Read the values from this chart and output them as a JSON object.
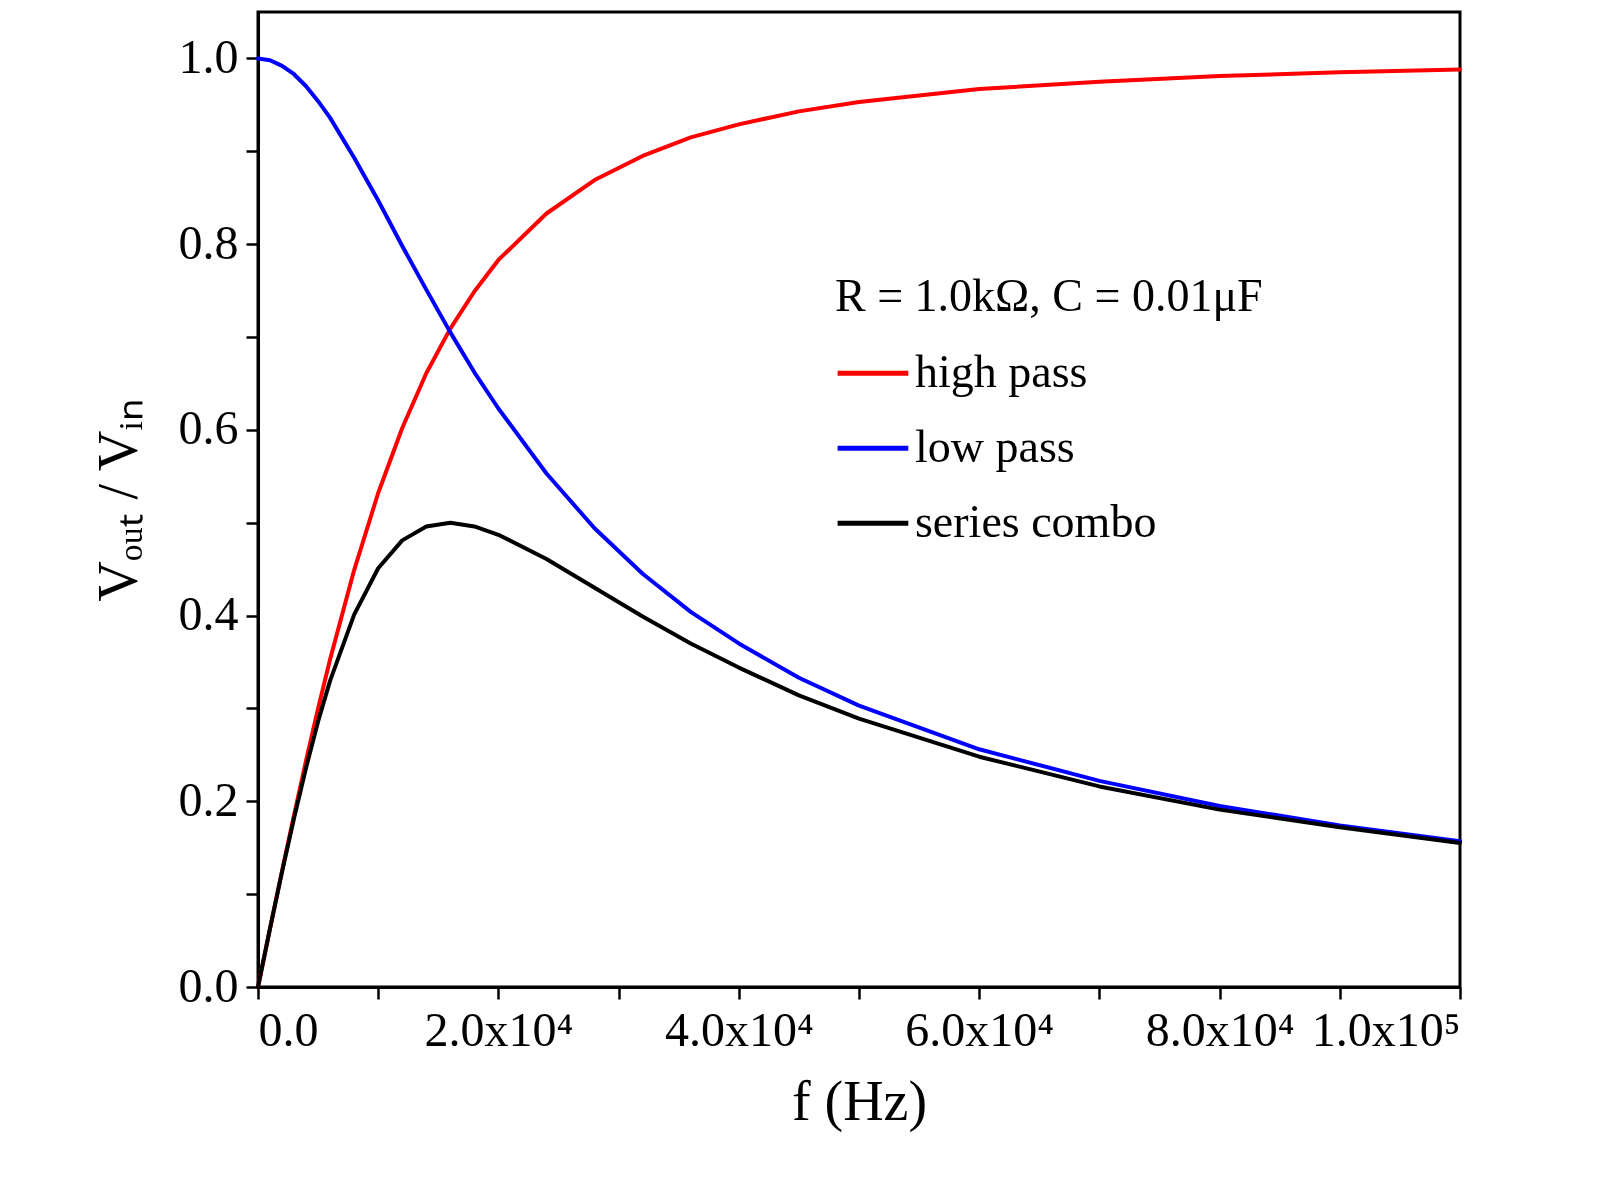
{
  "chart_data": {
    "type": "line",
    "xlabel": "f (Hz)",
    "ylabel": "Vₒᵤₜ / Vᵢₙ",
    "legend_title": "R = 1.0kΩ, C = 0.01μF",
    "x": [
      0,
      1000,
      2000,
      3000,
      4000,
      5000,
      6000,
      8000,
      10000,
      12000,
      14000,
      16000,
      18000,
      20000,
      24000,
      28000,
      32000,
      36000,
      40000,
      45000,
      50000,
      60000,
      70000,
      80000,
      90000,
      100000
    ],
    "series": [
      {
        "name": "high pass",
        "color": "#ff0000",
        "values": [
          0,
          0.063,
          0.125,
          0.185,
          0.244,
          0.3,
          0.353,
          0.449,
          0.532,
          0.602,
          0.661,
          0.709,
          0.749,
          0.783,
          0.833,
          0.869,
          0.895,
          0.915,
          0.929,
          0.943,
          0.953,
          0.967,
          0.975,
          0.981,
          0.985,
          0.988
        ]
      },
      {
        "name": "low pass",
        "color": "#0000ff",
        "values": [
          1,
          0.998,
          0.992,
          0.983,
          0.97,
          0.954,
          0.936,
          0.893,
          0.847,
          0.798,
          0.751,
          0.705,
          0.662,
          0.623,
          0.553,
          0.494,
          0.445,
          0.404,
          0.37,
          0.333,
          0.303,
          0.256,
          0.222,
          0.195,
          0.174,
          0.157
        ]
      },
      {
        "name": "series combo",
        "color": "#000000",
        "values": [
          0,
          0.063,
          0.124,
          0.182,
          0.236,
          0.286,
          0.33,
          0.401,
          0.451,
          0.481,
          0.496,
          0.5,
          0.496,
          0.487,
          0.461,
          0.43,
          0.399,
          0.37,
          0.344,
          0.314,
          0.289,
          0.248,
          0.216,
          0.191,
          0.172,
          0.155
        ]
      }
    ],
    "xlim": [
      0,
      100000
    ],
    "xticks": [
      {
        "value": 0,
        "label": "0.0"
      },
      {
        "value": 10000,
        "label": null
      },
      {
        "value": 20000,
        "label": "2.0x10⁴"
      },
      {
        "value": 30000,
        "label": null
      },
      {
        "value": 40000,
        "label": "4.0x10⁴"
      },
      {
        "value": 50000,
        "label": null
      },
      {
        "value": 60000,
        "label": "6.0x10⁴"
      },
      {
        "value": 70000,
        "label": null
      },
      {
        "value": 80000,
        "label": "8.0x10⁴"
      },
      {
        "value": 90000,
        "label": null
      },
      {
        "value": 100000,
        "label": "1.0x10⁵"
      }
    ],
    "ylim": [
      0,
      1.05
    ],
    "yticks": [
      {
        "value": 0,
        "label": "0.0"
      },
      {
        "value": 0.1,
        "label": null
      },
      {
        "value": 0.2,
        "label": "0.2"
      },
      {
        "value": 0.3,
        "label": null
      },
      {
        "value": 0.4,
        "label": "0.4"
      },
      {
        "value": 0.5,
        "label": null
      },
      {
        "value": 0.6,
        "label": "0.6"
      },
      {
        "value": 0.7,
        "label": null
      },
      {
        "value": 0.8,
        "label": "0.8"
      },
      {
        "value": 0.9,
        "label": null
      },
      {
        "value": 1.0,
        "label": "1.0"
      }
    ],
    "legend": "top right",
    "line_style": "solid",
    "marker": "none"
  }
}
